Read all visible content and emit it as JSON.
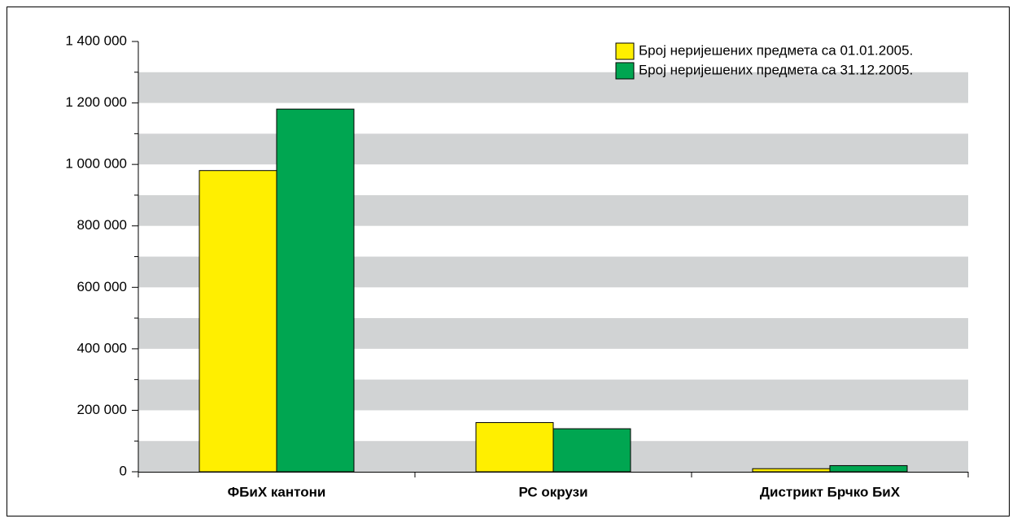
{
  "chart_data": {
    "type": "bar",
    "categories": [
      "ФБиХ кантони",
      "РС окрузи",
      "Дистрикт Брчко БиХ"
    ],
    "series": [
      {
        "name": "Број неријешених предмета са 01.01.2005.",
        "color": "#ffef00",
        "values": [
          980000,
          160000,
          10000
        ]
      },
      {
        "name": "Број неријешених предмета са 31.12.2005.",
        "color": "#00a651",
        "values": [
          1180000,
          140000,
          20000
        ]
      }
    ],
    "ylim": [
      0,
      1400000
    ],
    "yticks": [
      0,
      {
        "value": 200000,
        "label": "200 000"
      },
      {
        "value": 400000,
        "label": "400 000"
      },
      {
        "value": 600000,
        "label": "600 000"
      },
      {
        "value": 800000,
        "label": "800 000"
      },
      {
        "value": 1000000,
        "label": "1 000 000"
      },
      {
        "value": 1200000,
        "label": "1 200 000"
      },
      {
        "value": 1400000,
        "label": "1 400 000"
      }
    ],
    "minor_yticks": [
      100000,
      300000,
      500000,
      700000,
      900000,
      1100000,
      1300000
    ],
    "grid": "bands",
    "grid_color": "#d1d3d4",
    "legend": "top-right"
  }
}
